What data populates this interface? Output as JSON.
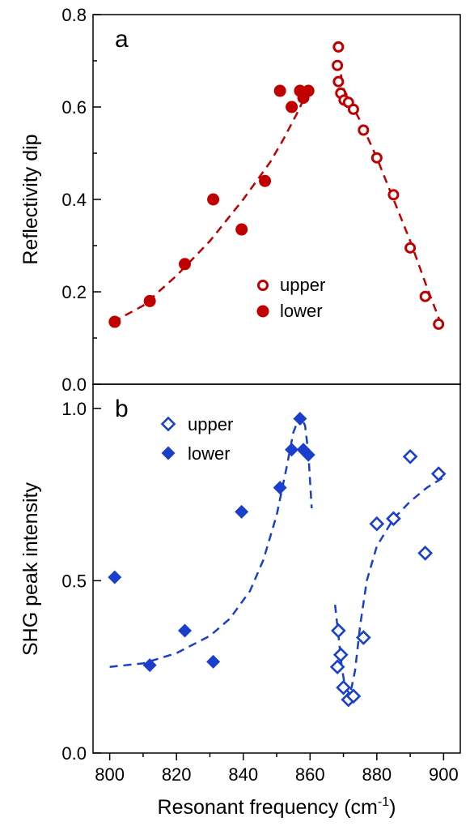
{
  "chart_data": [
    {
      "panel": "a",
      "type": "scatter",
      "ylabel": "Reflectivity dip",
      "xlim": [
        795,
        905
      ],
      "ylim": [
        0,
        0.8
      ],
      "yticks": [
        "0.0",
        "0.2",
        "0.4",
        "0.6",
        "0.8"
      ],
      "legend_position": "middle-right",
      "color": "#c00000",
      "series": [
        {
          "name": "upper",
          "marker": "open-circle",
          "points": [
            [
              868.5,
              0.73
            ],
            [
              868.2,
              0.69
            ],
            [
              868.5,
              0.655
            ],
            [
              869.2,
              0.63
            ],
            [
              870.2,
              0.615
            ],
            [
              871.5,
              0.61
            ],
            [
              873.0,
              0.595
            ],
            [
              876.0,
              0.55
            ],
            [
              880.0,
              0.49
            ],
            [
              885.0,
              0.41
            ],
            [
              890.0,
              0.295
            ],
            [
              894.5,
              0.19
            ],
            [
              898.5,
              0.13
            ]
          ]
        },
        {
          "name": "lower",
          "marker": "filled-circle",
          "points": [
            [
              801.5,
              0.135
            ],
            [
              812.0,
              0.18
            ],
            [
              822.5,
              0.26
            ],
            [
              831.0,
              0.4
            ],
            [
              839.5,
              0.335
            ],
            [
              846.5,
              0.44
            ],
            [
              851.0,
              0.635
            ],
            [
              854.5,
              0.6
            ],
            [
              857.0,
              0.635
            ],
            [
              858.0,
              0.62
            ],
            [
              859.5,
              0.635
            ]
          ]
        }
      ],
      "fits": [
        {
          "points": [
            [
              801,
              0.135
            ],
            [
              810,
              0.17
            ],
            [
              820,
              0.235
            ],
            [
              830,
              0.31
            ],
            [
              840,
              0.4
            ],
            [
              848,
              0.48
            ],
            [
              852,
              0.53
            ],
            [
              856,
              0.585
            ],
            [
              860,
              0.645
            ]
          ]
        },
        {
          "points": [
            [
              868.5,
              0.7
            ],
            [
              870,
              0.64
            ],
            [
              875,
              0.57
            ],
            [
              880,
              0.49
            ],
            [
              885,
              0.4
            ],
            [
              890,
              0.31
            ],
            [
              895,
              0.21
            ],
            [
              899,
              0.135
            ]
          ]
        }
      ]
    },
    {
      "panel": "b",
      "type": "scatter",
      "xlabel": "Resonant frequency (cm",
      "xlabel_sup": "-1",
      "xlabel_end": ")",
      "ylabel": "SHG peak intensity",
      "xlim": [
        795,
        905
      ],
      "ylim": [
        0,
        1.07
      ],
      "xticks": [
        "800",
        "820",
        "840",
        "860",
        "880",
        "900"
      ],
      "yticks": [
        "0.0",
        "0.5",
        "1.0"
      ],
      "legend_position": "top-left",
      "color": "#1a3fcc",
      "series": [
        {
          "name": "upper",
          "marker": "open-diamond",
          "points": [
            [
              868.5,
              0.355
            ],
            [
              869.2,
              0.285
            ],
            [
              868.2,
              0.25
            ],
            [
              870.0,
              0.19
            ],
            [
              871.5,
              0.155
            ],
            [
              873.0,
              0.165
            ],
            [
              876.0,
              0.335
            ],
            [
              880.0,
              0.665
            ],
            [
              885.0,
              0.68
            ],
            [
              890.0,
              0.86
            ],
            [
              894.5,
              0.58
            ],
            [
              898.5,
              0.81
            ]
          ]
        },
        {
          "name": "lower",
          "marker": "filled-diamond",
          "points": [
            [
              801.5,
              0.51
            ],
            [
              812.0,
              0.255
            ],
            [
              822.5,
              0.355
            ],
            [
              831.0,
              0.265
            ],
            [
              839.5,
              0.7
            ],
            [
              851.0,
              0.77
            ],
            [
              854.5,
              0.88
            ],
            [
              857.0,
              0.97
            ],
            [
              858.0,
              0.88
            ],
            [
              859.5,
              0.865
            ]
          ]
        }
      ],
      "fits": [
        {
          "points": [
            [
              800,
              0.25
            ],
            [
              810,
              0.26
            ],
            [
              820,
              0.29
            ],
            [
              830,
              0.34
            ],
            [
              836,
              0.39
            ],
            [
              842,
              0.47
            ],
            [
              846,
              0.56
            ],
            [
              850,
              0.69
            ],
            [
              853,
              0.83
            ],
            [
              855,
              0.93
            ],
            [
              857,
              0.98
            ],
            [
              858.5,
              0.95
            ],
            [
              859.5,
              0.87
            ],
            [
              860.5,
              0.71
            ]
          ]
        },
        {
          "points": [
            [
              867.5,
              0.43
            ],
            [
              868.5,
              0.34
            ],
            [
              869.5,
              0.25
            ],
            [
              870.5,
              0.19
            ],
            [
              872,
              0.17
            ],
            [
              873.5,
              0.24
            ],
            [
              875,
              0.37
            ],
            [
              877,
              0.5
            ],
            [
              880,
              0.6
            ],
            [
              885,
              0.68
            ],
            [
              890,
              0.73
            ],
            [
              895,
              0.77
            ],
            [
              900,
              0.8
            ]
          ]
        }
      ]
    }
  ]
}
